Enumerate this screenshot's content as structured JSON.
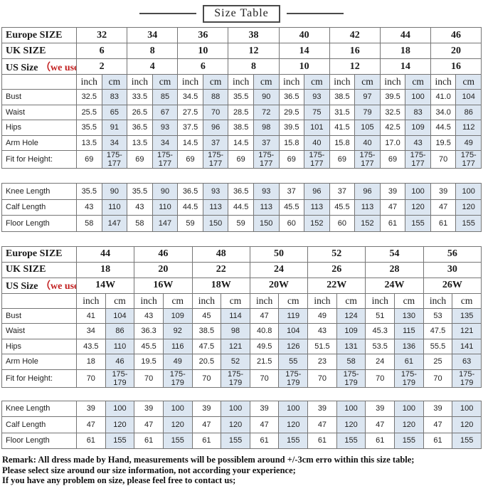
{
  "title": "Size Table",
  "colors": {
    "cm_column_bg": "#dce6f1",
    "note_red": "#c22020",
    "grid_line": "#757575"
  },
  "unit_labels": {
    "inch": "inch",
    "cm": "cm"
  },
  "table1": {
    "unit_header_blue": true,
    "size_rows": [
      {
        "label": "Europe  SIZE",
        "note": "",
        "values": [
          "32",
          "34",
          "36",
          "38",
          "40",
          "42",
          "44",
          "46"
        ]
      },
      {
        "label": "UK SIZE",
        "note": "",
        "values": [
          "6",
          "8",
          "10",
          "12",
          "14",
          "16",
          "18",
          "20"
        ]
      },
      {
        "label": "US Size ",
        "note": "（we use）",
        "values": [
          "2",
          "4",
          "6",
          "8",
          "10",
          "12",
          "14",
          "16"
        ]
      }
    ],
    "measure_rows": [
      {
        "label": "Bust",
        "pairs": [
          [
            "32.5",
            "83"
          ],
          [
            "33.5",
            "85"
          ],
          [
            "34.5",
            "88"
          ],
          [
            "35.5",
            "90"
          ],
          [
            "36.5",
            "93"
          ],
          [
            "38.5",
            "97"
          ],
          [
            "39.5",
            "100"
          ],
          [
            "41.0",
            "104"
          ]
        ]
      },
      {
        "label": "Waist",
        "pairs": [
          [
            "25.5",
            "65"
          ],
          [
            "26.5",
            "67"
          ],
          [
            "27.5",
            "70"
          ],
          [
            "28.5",
            "72"
          ],
          [
            "29.5",
            "75"
          ],
          [
            "31.5",
            "79"
          ],
          [
            "32.5",
            "83"
          ],
          [
            "34.0",
            "86"
          ]
        ]
      },
      {
        "label": "Hips",
        "pairs": [
          [
            "35.5",
            "91"
          ],
          [
            "36.5",
            "93"
          ],
          [
            "37.5",
            "96"
          ],
          [
            "38.5",
            "98"
          ],
          [
            "39.5",
            "101"
          ],
          [
            "41.5",
            "105"
          ],
          [
            "42.5",
            "109"
          ],
          [
            "44.5",
            "112"
          ]
        ]
      },
      {
        "label": "Arm Hole",
        "pairs": [
          [
            "13.5",
            "34"
          ],
          [
            "13.5",
            "34"
          ],
          [
            "14.5",
            "37"
          ],
          [
            "14.5",
            "37"
          ],
          [
            "15.8",
            "40"
          ],
          [
            "15.8",
            "40"
          ],
          [
            "17.0",
            "43"
          ],
          [
            "19.5",
            "49"
          ]
        ]
      },
      {
        "label": "Fit for Height:",
        "pairs": [
          [
            "69",
            "175-177"
          ],
          [
            "69",
            "175-177"
          ],
          [
            "69",
            "175-177"
          ],
          [
            "69",
            "175-177"
          ],
          [
            "69",
            "175-177"
          ],
          [
            "69",
            "175-177"
          ],
          [
            "69",
            "175-177"
          ],
          [
            "70",
            "175-177"
          ]
        ]
      }
    ],
    "length_rows": [
      {
        "label": "Knee Length",
        "pairs": [
          [
            "35.5",
            "90"
          ],
          [
            "35.5",
            "90"
          ],
          [
            "36.5",
            "93"
          ],
          [
            "36.5",
            "93"
          ],
          [
            "37",
            "96"
          ],
          [
            "37",
            "96"
          ],
          [
            "39",
            "100"
          ],
          [
            "39",
            "100"
          ]
        ]
      },
      {
        "label": "Calf  Length",
        "pairs": [
          [
            "43",
            "110"
          ],
          [
            "43",
            "110"
          ],
          [
            "44.5",
            "113"
          ],
          [
            "44.5",
            "113"
          ],
          [
            "45.5",
            "113"
          ],
          [
            "45.5",
            "113"
          ],
          [
            "47",
            "120"
          ],
          [
            "47",
            "120"
          ]
        ]
      },
      {
        "label": "Floor  Length",
        "pairs": [
          [
            "58",
            "147"
          ],
          [
            "58",
            "147"
          ],
          [
            "59",
            "150"
          ],
          [
            "59",
            "150"
          ],
          [
            "60",
            "152"
          ],
          [
            "60",
            "152"
          ],
          [
            "61",
            "155"
          ],
          [
            "61",
            "155"
          ]
        ]
      }
    ]
  },
  "table2": {
    "unit_header_blue": false,
    "size_rows": [
      {
        "label": "Europe  SIZE",
        "note": "",
        "values": [
          "44",
          "46",
          "48",
          "50",
          "52",
          "54",
          "56"
        ]
      },
      {
        "label": "UK SIZE",
        "note": "",
        "values": [
          "18",
          "20",
          "22",
          "24",
          "26",
          "28",
          "30"
        ]
      },
      {
        "label": "US Size ",
        "note": "（we use）",
        "values": [
          "14W",
          "16W",
          "18W",
          "20W",
          "22W",
          "24W",
          "26W"
        ]
      }
    ],
    "measure_rows": [
      {
        "label": "Bust",
        "pairs": [
          [
            "41",
            "104"
          ],
          [
            "43",
            "109"
          ],
          [
            "45",
            "114"
          ],
          [
            "47",
            "119"
          ],
          [
            "49",
            "124"
          ],
          [
            "51",
            "130"
          ],
          [
            "53",
            "135"
          ]
        ]
      },
      {
        "label": "Waist",
        "pairs": [
          [
            "34",
            "86"
          ],
          [
            "36.3",
            "92"
          ],
          [
            "38.5",
            "98"
          ],
          [
            "40.8",
            "104"
          ],
          [
            "43",
            "109"
          ],
          [
            "45.3",
            "115"
          ],
          [
            "47.5",
            "121"
          ]
        ]
      },
      {
        "label": "Hips",
        "pairs": [
          [
            "43.5",
            "110"
          ],
          [
            "45.5",
            "116"
          ],
          [
            "47.5",
            "121"
          ],
          [
            "49.5",
            "126"
          ],
          [
            "51.5",
            "131"
          ],
          [
            "53.5",
            "136"
          ],
          [
            "55.5",
            "141"
          ]
        ]
      },
      {
        "label": "Arm Hole",
        "pairs": [
          [
            "18",
            "46"
          ],
          [
            "19.5",
            "49"
          ],
          [
            "20.5",
            "52"
          ],
          [
            "21.5",
            "55"
          ],
          [
            "23",
            "58"
          ],
          [
            "24",
            "61"
          ],
          [
            "25",
            "63"
          ]
        ]
      },
      {
        "label": "Fit for Height:",
        "pairs": [
          [
            "70",
            "175-179"
          ],
          [
            "70",
            "175-179"
          ],
          [
            "70",
            "175-179"
          ],
          [
            "70",
            "175-179"
          ],
          [
            "70",
            "175-179"
          ],
          [
            "70",
            "175-179"
          ],
          [
            "70",
            "175-179"
          ]
        ]
      }
    ],
    "length_rows": [
      {
        "label": "Knee Length",
        "pairs": [
          [
            "39",
            "100"
          ],
          [
            "39",
            "100"
          ],
          [
            "39",
            "100"
          ],
          [
            "39",
            "100"
          ],
          [
            "39",
            "100"
          ],
          [
            "39",
            "100"
          ],
          [
            "39",
            "100"
          ]
        ]
      },
      {
        "label": "Calf  Length",
        "pairs": [
          [
            "47",
            "120"
          ],
          [
            "47",
            "120"
          ],
          [
            "47",
            "120"
          ],
          [
            "47",
            "120"
          ],
          [
            "47",
            "120"
          ],
          [
            "47",
            "120"
          ],
          [
            "47",
            "120"
          ]
        ]
      },
      {
        "label": "Floor  Length",
        "pairs": [
          [
            "61",
            "155"
          ],
          [
            "61",
            "155"
          ],
          [
            "61",
            "155"
          ],
          [
            "61",
            "155"
          ],
          [
            "61",
            "155"
          ],
          [
            "61",
            "155"
          ],
          [
            "61",
            "155"
          ]
        ]
      }
    ]
  },
  "remarks": [
    "Remark: All dress made by Hand, measurements will be possiblem around +/-3cm erro within this size table;",
    "Please select size around our size information, not according your experience;",
    "If you have any problem on size, please feel free to contact us;"
  ]
}
